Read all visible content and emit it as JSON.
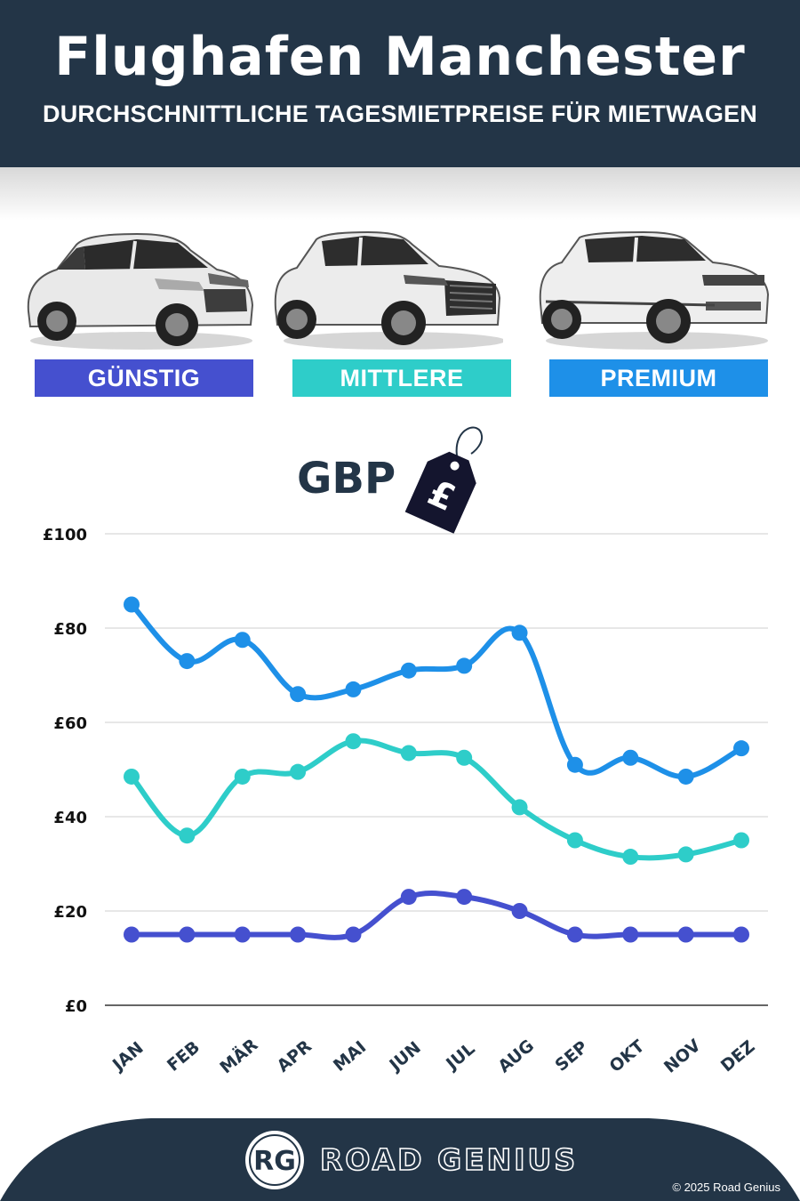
{
  "header": {
    "title": "Flughafen Manchester",
    "subtitle": "DURCHSCHNITTLICHE TAGESMIETPREISE FÜR MIETWAGEN"
  },
  "categories": [
    {
      "label": "GÜNSTIG",
      "color": "#4550cf",
      "car": "compact-hatchback"
    },
    {
      "label": "MITTLERE",
      "color": "#2ecdc9",
      "car": "midsize-suv"
    },
    {
      "label": "PREMIUM",
      "color": "#1e90e8",
      "car": "luxury-suv"
    }
  ],
  "currency": {
    "label": "GBP",
    "icon": "pound-price-tag-icon",
    "symbol": "£"
  },
  "chart_data": {
    "type": "line",
    "categories": [
      "JAN",
      "FEB",
      "MÄR",
      "APR",
      "MAI",
      "JUN",
      "JUL",
      "AUG",
      "SEP",
      "OKT",
      "NOV",
      "DEZ"
    ],
    "series": [
      {
        "name": "PREMIUM",
        "color": "#1e90e8",
        "values": [
          85,
          73,
          77.5,
          66,
          67,
          71,
          72,
          79,
          51,
          52.5,
          48.5,
          54.5
        ]
      },
      {
        "name": "MITTLERE",
        "color": "#2ecdc9",
        "values": [
          48.5,
          36,
          48.5,
          49.5,
          56,
          53.5,
          52.5,
          42,
          35,
          31.5,
          32,
          35
        ]
      },
      {
        "name": "GÜNSTIG",
        "color": "#4550cf",
        "values": [
          15,
          15,
          15,
          15,
          15,
          23,
          23,
          20,
          15,
          15,
          15,
          15
        ]
      }
    ],
    "yticks": [
      "£0",
      "£20",
      "£40",
      "£60",
      "£80",
      "£100"
    ],
    "ylim": [
      0,
      100
    ],
    "grid": true,
    "legend": "top"
  },
  "footer": {
    "logo_text": "RG",
    "brand": "ROAD GENIUS",
    "copyright": "© 2025 Road Genius",
    "background": "#233547"
  }
}
